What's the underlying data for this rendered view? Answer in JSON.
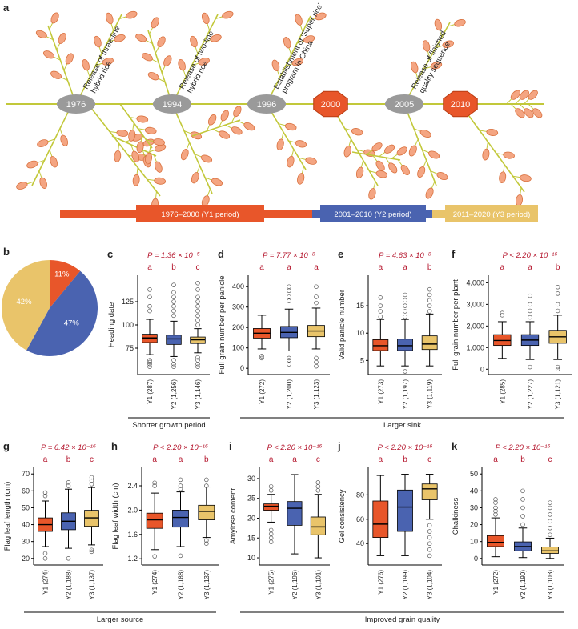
{
  "timeline": {
    "panel": "a",
    "events": [
      {
        "year": "1976",
        "label": "Release of three-line hybrid rice"
      },
      {
        "year": "1994",
        "label": "Release of two-line hybrid rice"
      },
      {
        "year": "1996",
        "label": "Establishment of 'Super rice' program in China"
      },
      {
        "year": "2000"
      },
      {
        "year": "2005",
        "label": "Release of finished quality sequence"
      },
      {
        "year": "2010"
      }
    ],
    "periods": [
      "1976–2000 (Y1 period)",
      "2001–2010 (Y2 period)",
      "2011–2020 (Y3 period)"
    ]
  },
  "groups": [
    {
      "label": "Shorter growth period"
    },
    {
      "label": "Larger sink"
    },
    {
      "label": "Larger source"
    },
    {
      "label": "Improved grain quality"
    }
  ],
  "chart_data": [
    {
      "type": "pie",
      "label": "b",
      "values": [
        11,
        47,
        42
      ],
      "value_labels": [
        "11%",
        "47%",
        "42%"
      ],
      "colors": [
        "#e8562a",
        "#4a63b0",
        "#e9c46a"
      ]
    },
    {
      "type": "box",
      "label": "c",
      "annotation": "P = 1.36 × 10⁻⁵",
      "ylabel": "Heading date",
      "categories": [
        "Y1 (287)",
        "Y2 (1,256)",
        "Y3 (1,146)"
      ],
      "letters": [
        "a",
        "b",
        "c"
      ],
      "colors": [
        "#e8562a",
        "#4a63b0",
        "#e9c46a"
      ],
      "ylim": [
        50,
        150
      ],
      "yticks": [
        75,
        100,
        125
      ],
      "boxes": [
        {
          "whislo": 68,
          "q1": 81,
          "med": 86,
          "q3": 90,
          "whishi": 106,
          "outliers": [
            55,
            58,
            60,
            62,
            115,
            120,
            130,
            138
          ]
        },
        {
          "whislo": 66,
          "q1": 79,
          "med": 85,
          "q3": 89,
          "whishi": 104,
          "outliers": [
            55,
            58,
            62,
            110,
            115,
            120,
            125,
            130,
            135,
            143
          ]
        },
        {
          "whislo": 70,
          "q1": 80,
          "med": 84,
          "q3": 87,
          "whishi": 96,
          "outliers": [
            55,
            58,
            62,
            65,
            100,
            105,
            110,
            115,
            120,
            125,
            130,
            138,
            145
          ]
        }
      ]
    },
    {
      "type": "box",
      "label": "d",
      "annotation": "P = 7.77 × 10⁻⁸",
      "ylabel": "Full grain number per panicle",
      "categories": [
        "Y1 (272)",
        "Y2 (1,200)",
        "Y3 (1,123)"
      ],
      "letters": [
        "a",
        "a",
        "a"
      ],
      "colors": [
        "#e8562a",
        "#4a63b0",
        "#e9c46a"
      ],
      "ylim": [
        -15,
        440
      ],
      "yticks": [
        0,
        100,
        200,
        300,
        400
      ],
      "boxes": [
        {
          "whislo": 95,
          "q1": 148,
          "med": 172,
          "q3": 195,
          "whishi": 260,
          "outliers": [
            50,
            60
          ]
        },
        {
          "whislo": 85,
          "q1": 150,
          "med": 176,
          "q3": 205,
          "whishi": 290,
          "outliers": [
            20,
            40,
            50,
            330,
            350,
            380,
            400
          ]
        },
        {
          "whislo": 95,
          "q1": 155,
          "med": 183,
          "q3": 210,
          "whishi": 295,
          "outliers": [
            10,
            30,
            50,
            320,
            350,
            400
          ]
        }
      ]
    },
    {
      "type": "box",
      "label": "e",
      "annotation": "P = 4.63 × 10⁻⁸",
      "ylabel": "Valid panicle number",
      "categories": [
        "Y1 (273)",
        "Y2 (1,197)",
        "Y3 (1,119)"
      ],
      "letters": [
        "a",
        "a",
        "b"
      ],
      "colors": [
        "#e8562a",
        "#4a63b0",
        "#e9c46a"
      ],
      "ylim": [
        3,
        20
      ],
      "yticks": [
        5,
        10,
        15
      ],
      "boxes": [
        {
          "whislo": 4,
          "q1": 6.8,
          "med": 7.7,
          "q3": 8.8,
          "whishi": 12.5,
          "outliers": [
            13,
            14,
            15,
            16.5
          ]
        },
        {
          "whislo": 4,
          "q1": 6.8,
          "med": 7.7,
          "q3": 8.9,
          "whishi": 12.5,
          "outliers": [
            3,
            13,
            14,
            15,
            16,
            17
          ]
        },
        {
          "whislo": 4,
          "q1": 7,
          "med": 8,
          "q3": 9.5,
          "whishi": 13.5,
          "outliers": [
            14,
            15,
            16,
            17,
            18
          ]
        }
      ]
    },
    {
      "type": "box",
      "label": "f",
      "annotation": "P < 2.20 × 10⁻¹⁶",
      "ylabel": "Full grain number per plant",
      "categories": [
        "Y1 (285)",
        "Y2 (1,227)",
        "Y3 (1,121)"
      ],
      "letters": [
        "a",
        "a",
        "b"
      ],
      "colors": [
        "#e8562a",
        "#4a63b0",
        "#e9c46a"
      ],
      "ylim": [
        -100,
        4200
      ],
      "yticks": [
        0,
        {
          "value": 1000,
          "label": "1,000"
        },
        {
          "value": 2000,
          "label": "2,000"
        },
        {
          "value": 3000,
          "label": "3,000"
        },
        {
          "value": 4000,
          "label": "4,000"
        }
      ],
      "boxes": [
        {
          "whislo": 500,
          "q1": 1100,
          "med": 1330,
          "q3": 1600,
          "whishi": 2200,
          "outliers": [
            2500,
            2600
          ]
        },
        {
          "whislo": 450,
          "q1": 1100,
          "med": 1350,
          "q3": 1600,
          "whishi": 2200,
          "outliers": [
            100,
            2400,
            2700,
            3000,
            3400
          ]
        },
        {
          "whislo": 450,
          "q1": 1200,
          "med": 1500,
          "q3": 1800,
          "whishi": 2500,
          "outliers": [
            0,
            100,
            2700,
            3000,
            3500,
            3800
          ]
        }
      ]
    },
    {
      "type": "box",
      "label": "g",
      "annotation": "P = 6.42 × 10⁻¹⁶",
      "ylabel": "Flag leaf length (cm)",
      "categories": [
        "Y1 (274)",
        "Y2 (1,188)",
        "Y3 (1,137)"
      ],
      "letters": [
        "a",
        "b",
        "c"
      ],
      "colors": [
        "#e8562a",
        "#4a63b0",
        "#e9c46a"
      ],
      "ylim": [
        18,
        72
      ],
      "yticks": [
        20,
        30,
        40,
        50,
        60,
        70
      ],
      "boxes": [
        {
          "whislo": 27,
          "q1": 36,
          "med": 40,
          "q3": 44,
          "whishi": 54,
          "outliers": [
            20,
            23,
            57,
            59
          ]
        },
        {
          "whislo": 26,
          "q1": 37,
          "med": 42,
          "q3": 47,
          "whishi": 61,
          "outliers": [
            20,
            63,
            65
          ]
        },
        {
          "whislo": 28,
          "q1": 39,
          "med": 44,
          "q3": 48.5,
          "whishi": 62,
          "outliers": [
            24,
            25,
            64,
            66,
            68
          ]
        }
      ]
    },
    {
      "type": "box",
      "label": "h",
      "annotation": "P < 2.20 × 10⁻¹⁶",
      "ylabel": "Flag leaf width (cm)",
      "categories": [
        "Y1 (274)",
        "Y2 (1,188)",
        "Y3 (1,137)"
      ],
      "letters": [
        "a",
        "a",
        "b"
      ],
      "colors": [
        "#e8562a",
        "#4a63b0",
        "#e9c46a"
      ],
      "ylim": [
        1.15,
        2.65
      ],
      "yticks": [
        1.2,
        1.6,
        {
          "value": 2,
          "label": "2.0"
        },
        2.4
      ],
      "boxes": [
        {
          "whislo": 1.35,
          "q1": 1.7,
          "med": 1.84,
          "q3": 1.95,
          "whishi": 2.28,
          "outliers": [
            1.24,
            2.4,
            2.45
          ]
        },
        {
          "whislo": 1.4,
          "q1": 1.72,
          "med": 1.88,
          "q3": 2.0,
          "whishi": 2.3,
          "outliers": [
            1.25,
            2.35,
            2.4,
            2.5
          ]
        },
        {
          "whislo": 1.55,
          "q1": 1.84,
          "med": 1.98,
          "q3": 2.08,
          "whishi": 2.38,
          "outliers": [
            1.45,
            1.5,
            2.4,
            2.5
          ]
        }
      ]
    },
    {
      "type": "box",
      "label": "i",
      "annotation": "P < 2.20 × 10⁻¹⁶",
      "ylabel": "Amylose content",
      "categories": [
        "Y1 (275)",
        "Y2 (1,196)",
        "Y3 (1,101)"
      ],
      "letters": [
        "a",
        "a",
        "c"
      ],
      "colors": [
        "#e8562a",
        "#4a63b0",
        "#e9c46a"
      ],
      "ylim": [
        9,
        32
      ],
      "yticks": [
        10,
        15,
        20,
        25,
        30
      ],
      "boxes": [
        {
          "whislo": 19,
          "q1": 22,
          "med": 23,
          "q3": 23.6,
          "whishi": 26,
          "outliers": [
            14,
            15,
            16,
            17,
            27,
            28
          ]
        },
        {
          "whislo": 11,
          "q1": 18.2,
          "med": 22.5,
          "q3": 24.2,
          "whishi": 31,
          "outliers": []
        },
        {
          "whislo": 10,
          "q1": 15.8,
          "med": 17.8,
          "q3": 20.3,
          "whishi": 26,
          "outliers": [
            27,
            28,
            29
          ]
        }
      ]
    },
    {
      "type": "box",
      "label": "j",
      "annotation": "P < 2.20 × 10⁻¹⁶",
      "ylabel": "Gel consistency",
      "categories": [
        "Y1 (276)",
        "Y2 (1,199)",
        "Y3 (1,104)"
      ],
      "letters": [
        "a",
        "b",
        "c"
      ],
      "colors": [
        "#e8562a",
        "#4a63b0",
        "#e9c46a"
      ],
      "ylim": [
        25,
        100
      ],
      "yticks": [
        40,
        60,
        80
      ],
      "boxes": [
        {
          "whislo": 30,
          "q1": 45,
          "med": 56,
          "q3": 75,
          "whishi": 96,
          "outliers": []
        },
        {
          "whislo": 30,
          "q1": 50,
          "med": 70,
          "q3": 84,
          "whishi": 97,
          "outliers": []
        },
        {
          "whislo": 60,
          "q1": 76,
          "med": 85,
          "q3": 89,
          "whishi": 97,
          "outliers": [
            30,
            35,
            40,
            45,
            50,
            55
          ]
        }
      ]
    },
    {
      "type": "box",
      "label": "k",
      "annotation": "P < 2.20 × 10⁻¹⁶",
      "ylabel": "Chalkiness",
      "categories": [
        "Y1 (272)",
        "Y2 (1,190)",
        "Y3 (1,103)"
      ],
      "letters": [
        "a",
        "b",
        "c"
      ],
      "colors": [
        "#e8562a",
        "#4a63b0",
        "#e9c46a"
      ],
      "ylim": [
        -2,
        52
      ],
      "yticks": [
        0,
        10,
        20,
        30,
        40,
        50
      ],
      "boxes": [
        {
          "whislo": 1,
          "q1": 7,
          "med": 9.5,
          "q3": 13.5,
          "whishi": 24,
          "outliers": [
            26,
            28,
            30,
            33,
            35
          ]
        },
        {
          "whislo": 0.5,
          "q1": 4.5,
          "med": 7,
          "q3": 9.8,
          "whishi": 18,
          "outliers": [
            20,
            25,
            30,
            35,
            40
          ]
        },
        {
          "whislo": 0,
          "q1": 3,
          "med": 4.5,
          "q3": 6.8,
          "whishi": 12,
          "outliers": [
            14,
            18,
            22,
            26,
            30,
            33
          ]
        }
      ]
    }
  ]
}
